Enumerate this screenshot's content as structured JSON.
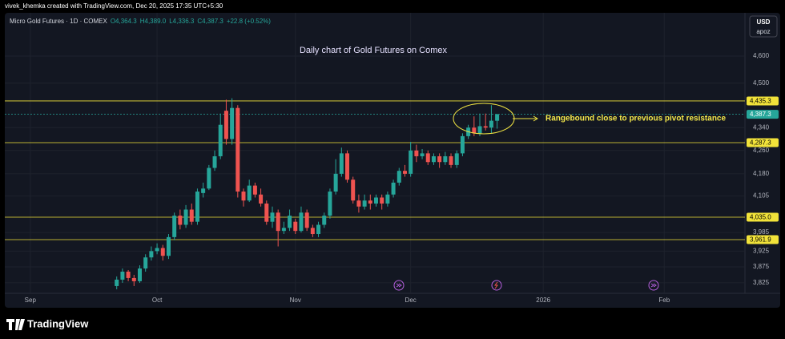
{
  "chart_data": {
    "type": "candlestick",
    "credit": "vivek_khemka created with TradingView.com, Dec 20, 2025 17:35 UTC+5:30",
    "symbol": "Micro Gold Futures · 1D · COMEX",
    "header_values": [
      "O4,364.3",
      "H4,389.0",
      "L4,336.3",
      "C4,387.3",
      "+22.8 (+0.52%)"
    ],
    "title": "Daily chart of Gold Futures on Comex",
    "annotation": "Rangebound close to previous pivot resistance",
    "currency": "USD",
    "unit_label": "apoz",
    "brand": "TradingView",
    "log_scale": true,
    "grid": true,
    "up_color": "#26a69a",
    "down_color": "#ef5350",
    "xlim": [
      -4,
      124
    ],
    "xticks": [
      {
        "value": 0,
        "label": "Sep"
      },
      {
        "value": 22,
        "label": "Oct"
      },
      {
        "value": 46,
        "label": "Nov"
      },
      {
        "value": 66,
        "label": "Dec"
      },
      {
        "value": 89,
        "label": "2026"
      },
      {
        "value": 110,
        "label": "Feb"
      }
    ],
    "ylim": [
      3795,
      4765
    ],
    "yticks": [
      {
        "value": 4600,
        "label": "4,600"
      },
      {
        "value": 4500,
        "label": "4,500"
      },
      {
        "value": 4340,
        "label": "4,340"
      },
      {
        "value": 4260,
        "label": "4,260"
      },
      {
        "value": 4180,
        "label": "4,180"
      },
      {
        "value": 4105,
        "label": "4,105"
      },
      {
        "value": 3985,
        "label": "3,985"
      },
      {
        "value": 3925,
        "label": "3,925"
      },
      {
        "value": 3875,
        "label": "3,875"
      },
      {
        "value": 3825,
        "label": "3,825"
      }
    ],
    "price_lines": [
      {
        "value": 4435.3,
        "label": "4,435.3",
        "color": "#f2e33a"
      },
      {
        "value": 4287.3,
        "label": "4,287.3",
        "color": "#f2e33a"
      },
      {
        "value": 4035.0,
        "label": "4,035.0",
        "color": "#f2e33a"
      },
      {
        "value": 3961.9,
        "label": "3,961.9",
        "color": "#f2e33a"
      }
    ],
    "last_price": {
      "value": 4387.3,
      "label": "4,387.3",
      "color": "#26a69a"
    },
    "x": [
      15,
      16,
      17,
      18,
      19,
      20,
      21,
      22,
      23,
      24,
      25,
      26,
      27,
      28,
      29,
      30,
      31,
      32,
      33,
      34,
      35,
      36,
      37,
      38,
      39,
      40,
      41,
      42,
      43,
      44,
      45,
      46,
      47,
      48,
      49,
      50,
      51,
      52,
      53,
      54,
      55,
      56,
      57,
      58,
      59,
      60,
      61,
      62,
      63,
      64,
      65,
      66,
      67,
      68,
      69,
      70,
      71,
      72,
      73,
      74,
      75,
      76,
      77,
      78,
      79,
      80,
      81
    ],
    "open": [
      3815,
      3835,
      3860,
      3840,
      3830,
      3870,
      3905,
      3925,
      3935,
      3910,
      3970,
      4040,
      4010,
      4060,
      4020,
      4115,
      4130,
      4200,
      4240,
      4400,
      4300,
      4410,
      4120,
      4090,
      4140,
      4110,
      4080,
      4020,
      4050,
      3990,
      4000,
      4020,
      3990,
      4050,
      4000,
      3980,
      4010,
      4040,
      4120,
      4180,
      4250,
      4160,
      4090,
      4070,
      4090,
      4080,
      4100,
      4080,
      4110,
      4150,
      4190,
      4180,
      4260,
      4240,
      4250,
      4220,
      4240,
      4220,
      4240,
      4210,
      4250,
      4310,
      4340,
      4320,
      4345,
      4340,
      4364.3
    ],
    "high": [
      3845,
      3870,
      3865,
      3850,
      3880,
      3915,
      3940,
      3950,
      3945,
      3980,
      4050,
      4060,
      4075,
      4080,
      4130,
      4150,
      4210,
      4260,
      4390,
      4440,
      4445,
      4420,
      4130,
      4160,
      4150,
      4130,
      4090,
      4070,
      4060,
      4020,
      4060,
      4030,
      4070,
      4060,
      4010,
      4020,
      4050,
      4130,
      4230,
      4270,
      4260,
      4170,
      4110,
      4110,
      4110,
      4110,
      4110,
      4120,
      4160,
      4200,
      4210,
      4290,
      4280,
      4265,
      4260,
      4250,
      4250,
      4255,
      4250,
      4260,
      4320,
      4350,
      4380,
      4390,
      4390,
      4420,
      4389
    ],
    "low": [
      3805,
      3825,
      3830,
      3815,
      3825,
      3860,
      3895,
      3915,
      3895,
      3900,
      3960,
      3995,
      4000,
      4010,
      4010,
      4100,
      4125,
      4190,
      4230,
      4280,
      4280,
      4100,
      4070,
      4085,
      4100,
      4070,
      4010,
      4000,
      3940,
      3980,
      3990,
      3980,
      3985,
      3990,
      3970,
      3970,
      4000,
      4030,
      4110,
      4170,
      4150,
      4080,
      4050,
      4060,
      4060,
      4070,
      4060,
      4070,
      4100,
      4140,
      4170,
      4170,
      4220,
      4230,
      4210,
      4210,
      4200,
      4210,
      4200,
      4200,
      4240,
      4300,
      4310,
      4310,
      4330,
      4320,
      4336.3
    ],
    "close": [
      3835,
      3860,
      3840,
      3830,
      3870,
      3905,
      3925,
      3935,
      3910,
      3970,
      4040,
      4010,
      4060,
      4020,
      4120,
      4130,
      4200,
      4240,
      4350,
      4300,
      4410,
      4120,
      4090,
      4140,
      4110,
      4080,
      4020,
      4050,
      3990,
      4000,
      4040,
      3990,
      4050,
      4000,
      3980,
      4010,
      4040,
      4120,
      4180,
      4250,
      4160,
      4090,
      4070,
      4090,
      4080,
      4100,
      4080,
      4110,
      4150,
      4190,
      4180,
      4260,
      4240,
      4250,
      4220,
      4240,
      4220,
      4240,
      4210,
      4250,
      4310,
      4340,
      4320,
      4345,
      4340,
      4364.5,
      4387.3
    ]
  }
}
